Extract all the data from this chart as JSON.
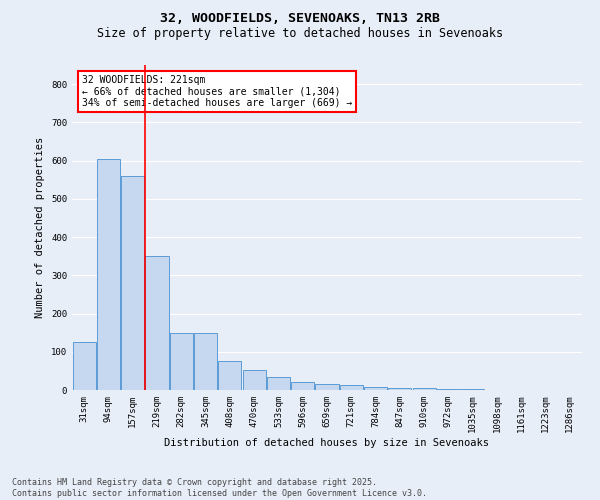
{
  "title_line1": "32, WOODFIELDS, SEVENOAKS, TN13 2RB",
  "title_line2": "Size of property relative to detached houses in Sevenoaks",
  "xlabel": "Distribution of detached houses by size in Sevenoaks",
  "ylabel": "Number of detached properties",
  "bar_labels": [
    "31sqm",
    "94sqm",
    "157sqm",
    "219sqm",
    "282sqm",
    "345sqm",
    "408sqm",
    "470sqm",
    "533sqm",
    "596sqm",
    "659sqm",
    "721sqm",
    "784sqm",
    "847sqm",
    "910sqm",
    "972sqm",
    "1035sqm",
    "1098sqm",
    "1161sqm",
    "1223sqm",
    "1286sqm"
  ],
  "bar_values": [
    125,
    605,
    560,
    350,
    148,
    148,
    75,
    52,
    35,
    20,
    15,
    12,
    8,
    5,
    5,
    3,
    2,
    1,
    1,
    1,
    0
  ],
  "bar_color": "#c5d8f0",
  "bar_edge_color": "#5b9bd5",
  "vline_x_index": 3,
  "vline_color": "red",
  "annotation_text": "32 WOODFIELDS: 221sqm\n← 66% of detached houses are smaller (1,304)\n34% of semi-detached houses are larger (669) →",
  "annotation_box_color": "red",
  "annotation_text_color": "black",
  "annotation_bg_color": "white",
  "ylim": [
    0,
    850
  ],
  "yticks": [
    0,
    100,
    200,
    300,
    400,
    500,
    600,
    700,
    800
  ],
  "background_color": "#e8eef8",
  "grid_color": "white",
  "footer_line1": "Contains HM Land Registry data © Crown copyright and database right 2025.",
  "footer_line2": "Contains public sector information licensed under the Open Government Licence v3.0.",
  "title_fontsize": 9.5,
  "subtitle_fontsize": 8.5,
  "label_fontsize": 7.5,
  "tick_fontsize": 6.5,
  "annotation_fontsize": 7,
  "footer_fontsize": 6
}
